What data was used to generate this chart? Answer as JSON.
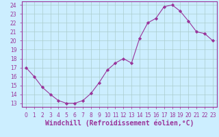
{
  "x": [
    0,
    1,
    2,
    3,
    4,
    5,
    6,
    7,
    8,
    9,
    10,
    11,
    12,
    13,
    14,
    15,
    16,
    17,
    18,
    19,
    20,
    21,
    22,
    23
  ],
  "y": [
    17,
    16,
    14.8,
    14,
    13.3,
    13,
    13,
    13.3,
    14.1,
    15.3,
    16.7,
    17.5,
    18,
    17.5,
    20.3,
    22,
    22.5,
    23.8,
    24,
    23.3,
    22.2,
    21,
    20.8,
    20
  ],
  "line_color": "#993399",
  "marker": "D",
  "marker_size": 2.2,
  "bg_color": "#cceeff",
  "grid_color": "#aacccc",
  "xlabel": "Windchill (Refroidissement éolien,°C)",
  "xlabel_color": "#993399",
  "ylim_min": 13,
  "ylim_max": 24,
  "xlim_min": 0,
  "xlim_max": 23,
  "yticks": [
    13,
    14,
    15,
    16,
    17,
    18,
    19,
    20,
    21,
    22,
    23,
    24
  ],
  "xticks": [
    0,
    1,
    2,
    3,
    4,
    5,
    6,
    7,
    8,
    9,
    10,
    11,
    12,
    13,
    14,
    15,
    16,
    17,
    18,
    19,
    20,
    21,
    22,
    23
  ],
  "tick_color": "#993399",
  "tick_fontsize": 5.5,
  "xlabel_fontsize": 7.0,
  "spine_color": "#993399"
}
